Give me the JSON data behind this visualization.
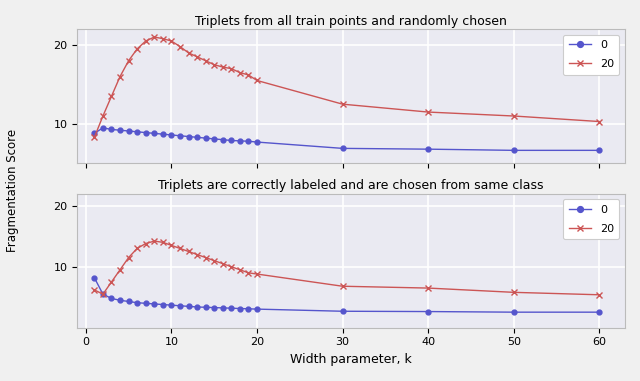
{
  "title1": "Triplets from all train points and randomly chosen",
  "title2": "Triplets are correctly labeled and are chosen from same class",
  "xlabel": "Width parameter, k",
  "ylabel": "Fragmentation Score",
  "legend_labels": [
    "0",
    "20"
  ],
  "background_color": "#eaeaf2",
  "grid_color": "white",
  "ax1_blue_x": [
    1,
    2,
    3,
    4,
    5,
    6,
    7,
    8,
    9,
    10,
    11,
    12,
    13,
    14,
    15,
    16,
    17,
    18,
    19,
    20,
    30,
    40,
    50,
    60
  ],
  "ax1_blue_y": [
    8.8,
    9.5,
    9.3,
    9.2,
    9.1,
    9.0,
    8.9,
    8.8,
    8.7,
    8.6,
    8.5,
    8.4,
    8.3,
    8.2,
    8.1,
    8.0,
    7.9,
    7.85,
    7.8,
    7.7,
    6.9,
    6.8,
    6.65,
    6.65
  ],
  "ax1_red_x": [
    1,
    2,
    3,
    4,
    5,
    6,
    7,
    8,
    9,
    10,
    11,
    12,
    13,
    14,
    15,
    16,
    17,
    18,
    19,
    20,
    30,
    40,
    50,
    60
  ],
  "ax1_red_y": [
    8.3,
    11.0,
    13.5,
    16.0,
    18.0,
    19.5,
    20.5,
    21.0,
    20.8,
    20.5,
    19.8,
    19.0,
    18.5,
    18.0,
    17.5,
    17.2,
    17.0,
    16.5,
    16.2,
    15.5,
    12.5,
    11.5,
    11.0,
    10.3
  ],
  "ax2_blue_x": [
    1,
    2,
    3,
    4,
    5,
    6,
    7,
    8,
    9,
    10,
    11,
    12,
    13,
    14,
    15,
    16,
    17,
    18,
    19,
    20,
    30,
    40,
    50,
    60
  ],
  "ax2_blue_y": [
    8.2,
    5.5,
    4.8,
    4.5,
    4.3,
    4.1,
    4.0,
    3.9,
    3.8,
    3.7,
    3.6,
    3.5,
    3.4,
    3.35,
    3.3,
    3.25,
    3.2,
    3.15,
    3.1,
    3.05,
    2.7,
    2.65,
    2.55,
    2.55
  ],
  "ax2_red_x": [
    1,
    2,
    3,
    4,
    5,
    6,
    7,
    8,
    9,
    10,
    11,
    12,
    13,
    14,
    15,
    16,
    17,
    18,
    19,
    20,
    30,
    40,
    50,
    60
  ],
  "ax2_red_y": [
    6.2,
    5.5,
    7.5,
    9.5,
    11.5,
    13.0,
    13.8,
    14.2,
    14.0,
    13.5,
    13.0,
    12.5,
    12.0,
    11.5,
    11.0,
    10.5,
    10.0,
    9.5,
    9.0,
    8.8,
    6.8,
    6.5,
    5.8,
    5.4
  ],
  "blue_color": "#5555cc",
  "red_color": "#cc5555",
  "ylim1": [
    5,
    22
  ],
  "ylim2": [
    0,
    22
  ],
  "yticks1": [
    10,
    20
  ],
  "yticks2": [
    10,
    20
  ],
  "xticks": [
    0,
    10,
    20,
    30,
    40,
    50,
    60
  ],
  "fig_facecolor": "#f0f0f0"
}
